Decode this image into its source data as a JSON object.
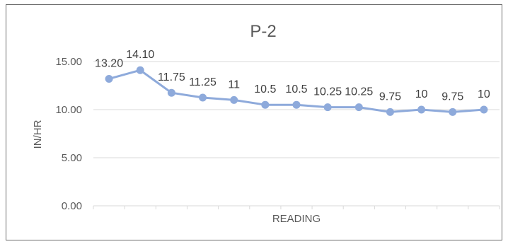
{
  "chart_data": {
    "type": "line",
    "title": "P-2",
    "xlabel": "READING",
    "ylabel": "IN/HR",
    "x": [
      1,
      2,
      3,
      4,
      5,
      6,
      7,
      8,
      9,
      10,
      11,
      12,
      13
    ],
    "series": [
      {
        "values": [
          13.2,
          14.1,
          11.75,
          11.25,
          11,
          10.5,
          10.5,
          10.25,
          10.25,
          9.75,
          10,
          9.75,
          10
        ],
        "labels": [
          "13.20",
          "14.10",
          "11.75",
          "11.25",
          "11",
          "10.5",
          "10.5",
          "10.25",
          "10.25",
          "9.75",
          "10",
          "9.75",
          "10"
        ],
        "color": "#8eaadb"
      }
    ],
    "yticks": [
      "0.00",
      "5.00",
      "10.00",
      "15.00"
    ],
    "ytick_values": [
      0,
      5,
      10,
      15
    ],
    "ylim": [
      0,
      15
    ],
    "grid": "horizontal",
    "legend": "none",
    "gridline_color": "#d9d9d9"
  }
}
